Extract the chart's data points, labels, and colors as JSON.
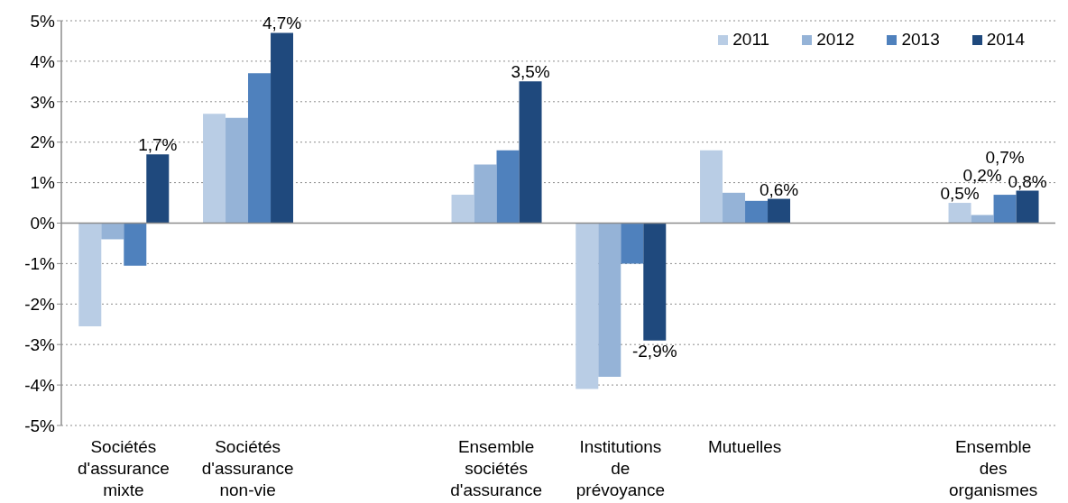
{
  "chart_data": {
    "type": "bar",
    "categories": [
      "Sociétés d'assurance mixte",
      "Sociétés d'assurance non-vie",
      null,
      "Ensemble sociétés d'assurance",
      "Institutions de prévoyance",
      "Mutuelles",
      null,
      "Ensemble des organismes"
    ],
    "series": [
      {
        "name": "2011",
        "color": "#b9cde5",
        "values": [
          -2.55,
          2.7,
          null,
          0.7,
          -4.1,
          1.8,
          null,
          0.5
        ],
        "value_labels": [
          null,
          null,
          null,
          null,
          null,
          null,
          null,
          "0,5%"
        ]
      },
      {
        "name": "2012",
        "color": "#95b3d7",
        "values": [
          -0.4,
          2.6,
          null,
          1.45,
          -3.8,
          0.75,
          null,
          0.2
        ],
        "value_labels": [
          null,
          null,
          null,
          null,
          null,
          null,
          null,
          "0,2%"
        ]
      },
      {
        "name": "2013",
        "color": "#4f81bd",
        "values": [
          -1.05,
          3.7,
          null,
          1.8,
          -1.0,
          0.55,
          null,
          0.7
        ],
        "value_labels": [
          null,
          null,
          null,
          null,
          null,
          null,
          null,
          "0,7%"
        ]
      },
      {
        "name": "2014",
        "color": "#1f497d",
        "values": [
          1.7,
          4.7,
          null,
          3.5,
          -2.9,
          0.6,
          null,
          0.8
        ],
        "value_labels": [
          "1,7%",
          "4,7%",
          null,
          "3,5%",
          "-2,9%",
          "0,6%",
          null,
          "0,8%"
        ]
      }
    ],
    "ylim": [
      -5,
      5
    ],
    "yticks": [
      {
        "value": -5,
        "label": "-5%"
      },
      {
        "value": -4,
        "label": "-4%"
      },
      {
        "value": -3,
        "label": "-3%"
      },
      {
        "value": -2,
        "label": "-2%"
      },
      {
        "value": -1,
        "label": "-1%"
      },
      {
        "value": 0,
        "label": "0%"
      },
      {
        "value": 1,
        "label": "1%"
      },
      {
        "value": 2,
        "label": "2%"
      },
      {
        "value": 3,
        "label": "3%"
      },
      {
        "value": 4,
        "label": "4%"
      },
      {
        "value": 5,
        "label": "5%"
      }
    ],
    "grid": "y",
    "legend": "top right"
  }
}
